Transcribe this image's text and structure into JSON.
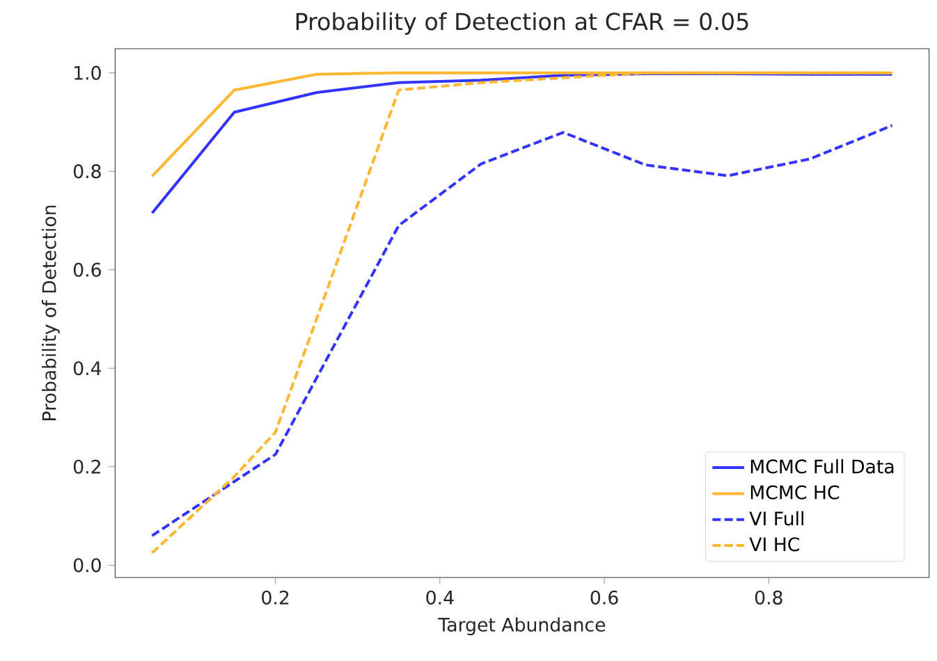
{
  "chart_data": {
    "type": "line",
    "title": "Probability of Detection at CFAR = 0.05",
    "xlabel": "Target Abundance",
    "ylabel": "Probability of Detection",
    "xlim": [
      0.005,
      0.995
    ],
    "ylim": [
      -0.025,
      1.049
    ],
    "xticks": [
      0.2,
      0.4,
      0.6,
      0.8
    ],
    "yticks": [
      {
        "value": 0,
        "label": "0.0"
      },
      0.2,
      0.4,
      0.6,
      0.8,
      {
        "value": 1,
        "label": "1.0"
      }
    ],
    "legend": "bottom right",
    "grid": false,
    "series": [
      {
        "name": "MCMC Full Data",
        "color": "#3333ff",
        "line_style": "solid",
        "x": [
          0.05,
          0.15,
          0.25,
          0.35,
          0.45,
          0.55,
          0.65,
          0.75,
          0.85,
          0.95
        ],
        "values": [
          0.715,
          0.92,
          0.96,
          0.98,
          0.985,
          0.995,
          0.998,
          0.998,
          0.997,
          0.997
        ]
      },
      {
        "name": "MCMC HC",
        "color": "#ffb732",
        "line_style": "solid",
        "x": [
          0.05,
          0.15,
          0.25,
          0.35,
          0.45,
          0.55,
          0.65,
          0.75,
          0.85,
          0.95
        ],
        "values": [
          0.79,
          0.965,
          0.997,
          1.0,
          1.0,
          1.0,
          1.0,
          1.0,
          1.0,
          1.0
        ]
      },
      {
        "name": "VI Full",
        "color": "#3333ff",
        "line_style": "dashed",
        "x": [
          0.05,
          0.15,
          0.2,
          0.25,
          0.35,
          0.45,
          0.55,
          0.65,
          0.75,
          0.85,
          0.95
        ],
        "values": [
          0.06,
          0.17,
          0.225,
          0.38,
          0.69,
          0.815,
          0.879,
          0.813,
          0.791,
          0.825,
          0.893
        ]
      },
      {
        "name": "VI HC",
        "color": "#ffb732",
        "line_style": "dashed",
        "x": [
          0.05,
          0.15,
          0.2,
          0.25,
          0.35,
          0.45,
          0.55,
          0.65,
          0.75,
          0.85,
          0.95
        ],
        "values": [
          0.025,
          0.18,
          0.27,
          0.5,
          0.965,
          0.98,
          0.99,
          1.0,
          1.0,
          1.0,
          1.0
        ]
      }
    ]
  }
}
